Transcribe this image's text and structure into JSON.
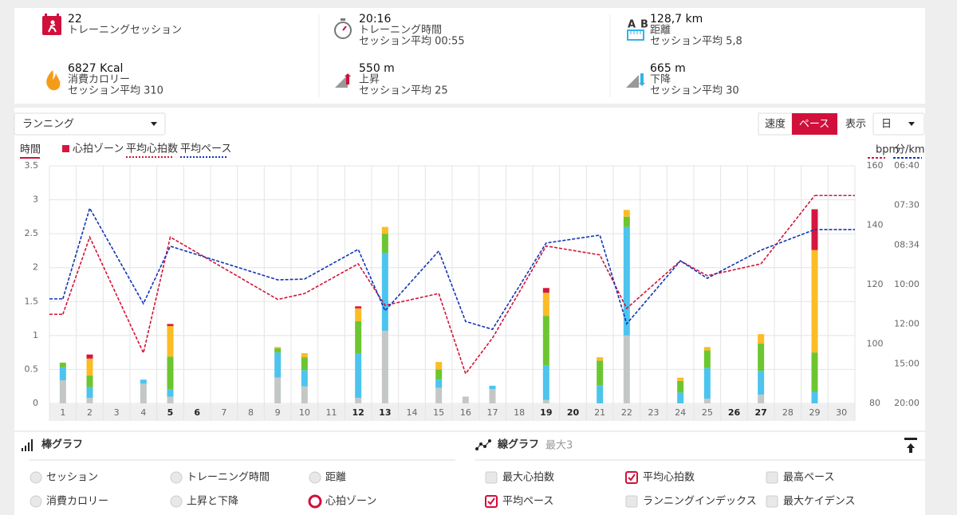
{
  "stats": [
    {
      "value": "22",
      "label": "トレーニングセッション"
    },
    {
      "value": "20:16",
      "label": "トレーニング時間",
      "sub": "セッション平均 00:55"
    },
    {
      "value": "128,7 km",
      "label": "距離",
      "sub": "セッション平均 5,8",
      "icon_text": [
        "A",
        "B"
      ]
    },
    {
      "value": "6827 Kcal",
      "label": "消費カロリー",
      "sub": "セッション平均 310"
    },
    {
      "value": "550 m",
      "label": "上昇",
      "sub": "セッション平均 25"
    },
    {
      "value": "665 m",
      "label": "下降",
      "sub": "セッション平均 30"
    }
  ],
  "controls": {
    "sport": "ランニング",
    "mode": [
      "速度",
      "ペース"
    ],
    "mode_selected": 1,
    "view_label": "表示",
    "view": "日"
  },
  "chart_data": {
    "type": "stacked_bar_line",
    "y_label": "時間",
    "bar_legend": "心拍ゾーン",
    "y2_label": "bpm",
    "y3_label": "分/km",
    "grid": true,
    "xlim": [
      0.5,
      30.5
    ],
    "xticks": [
      1,
      2,
      3,
      4,
      5,
      6,
      7,
      8,
      9,
      10,
      11,
      12,
      13,
      14,
      15,
      16,
      17,
      18,
      19,
      20,
      21,
      22,
      23,
      24,
      25,
      26,
      27,
      28,
      29,
      30
    ],
    "xticks_bold": [
      5,
      6,
      12,
      13,
      19,
      20,
      26,
      27
    ],
    "ylim": [
      0,
      3.5
    ],
    "yticks": [
      0,
      0.5,
      1,
      1.5,
      2,
      2.5,
      3,
      3.5
    ],
    "y2lim": [
      80,
      160
    ],
    "y2ticks": [
      80,
      100,
      120,
      140,
      160
    ],
    "y3lim": [
      3,
      9
    ],
    "y3ticks": [
      {
        "value": 3,
        "label": "20:00"
      },
      {
        "value": 4,
        "label": "15:00"
      },
      {
        "value": 5,
        "label": "12:00"
      },
      {
        "value": 6,
        "label": "10:00"
      },
      {
        "value": 7,
        "label": "08:34"
      },
      {
        "value": 8,
        "label": "07:30"
      },
      {
        "value": 9,
        "label": "06:40"
      }
    ],
    "x": [
      1,
      2,
      4,
      5,
      9,
      10,
      12,
      13,
      15,
      16,
      17,
      19,
      21,
      22,
      24,
      25,
      27,
      29
    ],
    "zones": [
      {
        "color": "#c3c8c7",
        "values": [
          0.34,
          0.08,
          0.29,
          0.1,
          0.38,
          0.25,
          0.08,
          1.07,
          0.23,
          0.1,
          0.21,
          0.05,
          0,
          1.0,
          0,
          0.07,
          0.13,
          0
        ]
      },
      {
        "color": "#4cc4ee",
        "values": [
          0.19,
          0.16,
          0.06,
          0.11,
          0.37,
          0.24,
          0.65,
          1.15,
          0.12,
          0,
          0.05,
          0.51,
          0.27,
          1.6,
          0.16,
          0.45,
          0.35,
          0.17
        ]
      },
      {
        "color": "#6cc630",
        "values": [
          0.07,
          0.17,
          0,
          0.48,
          0.06,
          0.19,
          0.48,
          0.28,
          0.15,
          0,
          0,
          0.73,
          0.36,
          0.15,
          0.17,
          0.26,
          0.4,
          0.58
        ]
      },
      {
        "color": "#fbbc25",
        "values": [
          0,
          0.25,
          0,
          0.45,
          0.02,
          0.06,
          0.19,
          0.1,
          0.11,
          0,
          0,
          0.34,
          0.05,
          0.1,
          0.05,
          0.05,
          0.14,
          1.51
        ]
      },
      {
        "color": "#d6163f",
        "values": [
          0,
          0.06,
          0,
          0.03,
          0,
          0,
          0.03,
          0,
          0,
          0,
          0,
          0.07,
          0,
          0,
          0,
          0,
          0,
          0.6
        ]
      }
    ],
    "series": [
      {
        "name": "平均心拍数",
        "color": "#d2143a",
        "axis": "y2",
        "values": [
          110,
          136,
          97,
          136,
          115,
          117,
          127,
          113,
          117,
          90,
          102,
          133,
          130,
          112,
          128,
          123,
          127,
          150
        ]
      },
      {
        "name": "平均ペース",
        "color": "#1234b6",
        "axis": "y3",
        "values": [
          5.64,
          7.93,
          5.52,
          6.97,
          6.12,
          6.14,
          6.89,
          5.34,
          6.85,
          5.07,
          4.87,
          7.05,
          7.25,
          5.01,
          6.6,
          6.16,
          6.87,
          7.39
        ]
      }
    ]
  },
  "bar_options": {
    "title": "棒グラフ",
    "options": [
      "セッション",
      "トレーニング時間",
      "距離",
      "消費カロリー",
      "上昇と下降",
      "心拍ゾーン"
    ],
    "selected": 5
  },
  "line_options": {
    "title": "線グラフ",
    "note": "最大3",
    "options": [
      "最大心拍数",
      "平均心拍数",
      "最高ペース",
      "平均ペース",
      "ランニングインデックス",
      "最大ケイデンス"
    ],
    "checked": [
      1,
      3
    ]
  }
}
